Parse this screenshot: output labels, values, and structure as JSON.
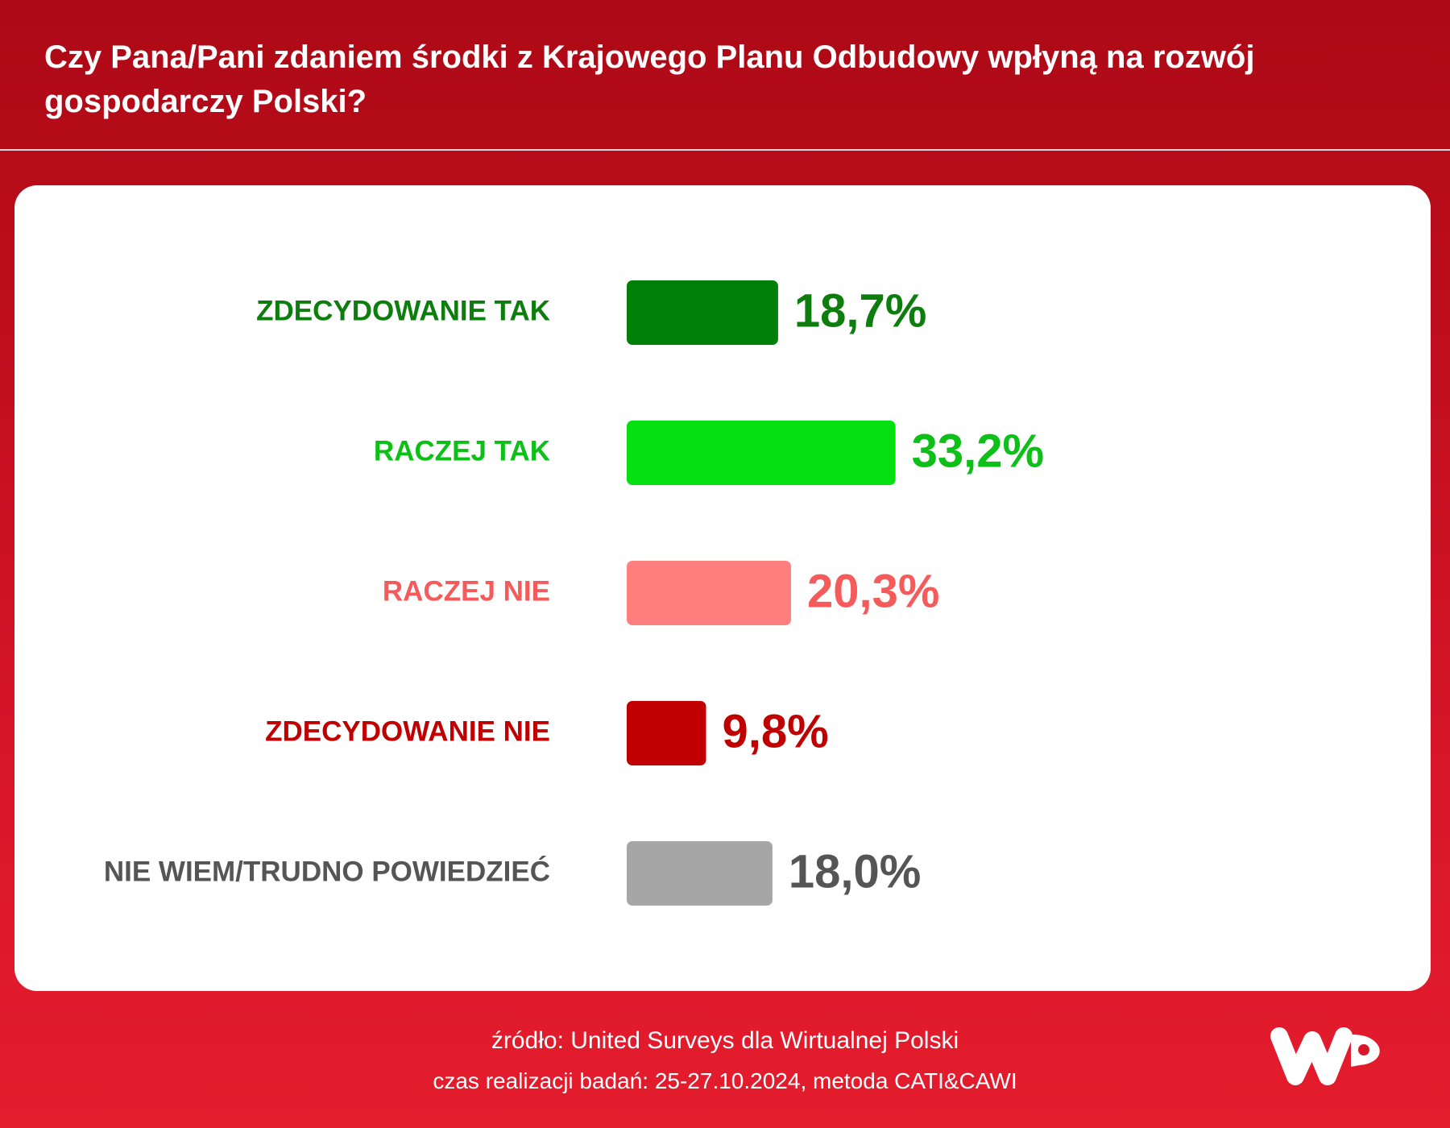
{
  "header": {
    "title": "Czy Pana/Pani zdaniem środki z Krajowego Planu Odbudowy wpłyną na rozwój gospodarczy Polski?"
  },
  "footer": {
    "source": "źródło: United Surveys dla Wirtualnej Polski",
    "survey_info": "czas realizacji badań: 25-27.10.2024, metoda CATI&CAWI"
  },
  "logo": {
    "icon": "wp-logo-icon",
    "text": "WP"
  },
  "colors": {
    "background": "#c8111f",
    "panel": "#ffffff",
    "text_white": "#ffffff"
  },
  "chart_data": {
    "type": "bar",
    "orientation": "horizontal",
    "categories": [
      "ZDECYDOWANIE TAK",
      "RACZEJ TAK",
      "RACZEJ NIE",
      "ZDECYDOWANIE NIE",
      "NIE WIEM/TRUDNO POWIEDZIEĆ"
    ],
    "values": [
      18.7,
      33.2,
      20.3,
      9.8,
      18.0
    ],
    "value_labels": [
      "18,7%",
      "33,2%",
      "20,3%",
      "9,8%",
      "18,0%"
    ],
    "bar_colors": [
      "#008008",
      "#04e010",
      "#ff7f7f",
      "#c00000",
      "#a6a6a6"
    ],
    "label_colors": [
      "#0d7d0d",
      "#0cc018",
      "#f55b5b",
      "#c00000",
      "#555555"
    ],
    "value_colors": [
      "#0d7d0d",
      "#0cc018",
      "#f55b5b",
      "#c00000",
      "#555555"
    ],
    "unit": "%",
    "xlim": [
      0,
      100
    ],
    "grid": false,
    "legend": "none"
  }
}
